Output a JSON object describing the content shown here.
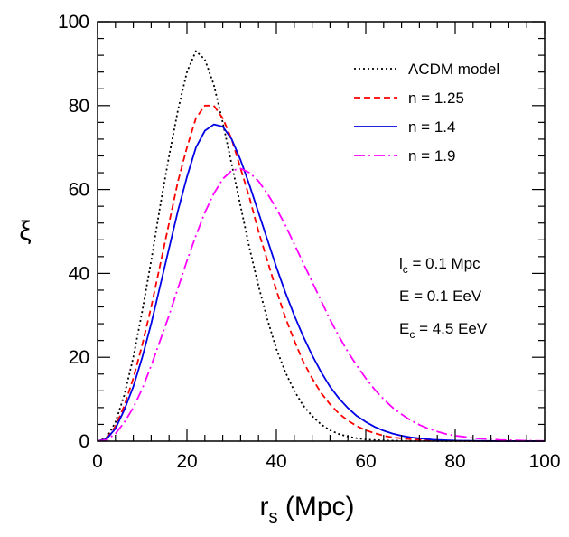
{
  "chart_data": {
    "type": "line",
    "xlabel": "r",
    "xlabel_sub": "s",
    "xlabel_unit": " (Mpc)",
    "ylabel": "ξ",
    "xlim": [
      0,
      100
    ],
    "ylim": [
      0,
      100
    ],
    "xticks": [
      0,
      20,
      40,
      60,
      80,
      100
    ],
    "yticks": [
      0,
      20,
      40,
      60,
      80,
      100
    ],
    "grid": false,
    "legend_position": "top-right",
    "series": [
      {
        "name": "ΛCDM model",
        "color": "#000000",
        "dash": "dotted",
        "x": [
          0,
          2,
          4,
          6,
          8,
          10,
          12,
          14,
          16,
          18,
          20,
          22,
          24,
          26,
          28,
          30,
          32,
          34,
          36,
          38,
          40,
          42,
          44,
          46,
          48,
          50,
          52,
          54,
          56,
          58,
          60,
          64,
          70,
          80,
          90,
          100
        ],
        "values": [
          0,
          0.8,
          4.5,
          11,
          20,
          31,
          43,
          56,
          68,
          79,
          88,
          93,
          91,
          85,
          76,
          66,
          56,
          46,
          37,
          29,
          22,
          16.5,
          12,
          8.5,
          6,
          4,
          2.6,
          1.7,
          1.1,
          0.7,
          0.4,
          0.15,
          0.04,
          0,
          0,
          0
        ]
      },
      {
        "name": "n = 1.25",
        "color": "#ff0000",
        "dash": "dashed",
        "x": [
          0,
          2,
          4,
          6,
          8,
          10,
          12,
          14,
          16,
          18,
          20,
          22,
          24,
          26,
          28,
          30,
          32,
          34,
          36,
          38,
          40,
          42,
          44,
          46,
          48,
          50,
          52,
          54,
          56,
          58,
          60,
          62,
          64,
          66,
          70,
          75,
          80,
          90,
          100
        ],
        "values": [
          0,
          0.6,
          3.5,
          8.5,
          15,
          23,
          32,
          42,
          52,
          62,
          70,
          77,
          80,
          80,
          77,
          72,
          65,
          58,
          50,
          43,
          36,
          29.5,
          24,
          19,
          15,
          11.5,
          8.8,
          6.6,
          4.9,
          3.6,
          2.6,
          1.9,
          1.3,
          0.9,
          0.45,
          0.15,
          0.05,
          0,
          0
        ]
      },
      {
        "name": "n = 1.4",
        "color": "#0000e6",
        "dash": "solid",
        "x": [
          0,
          2,
          4,
          6,
          8,
          10,
          12,
          14,
          16,
          18,
          20,
          22,
          24,
          26,
          28,
          30,
          32,
          34,
          36,
          38,
          40,
          42,
          44,
          46,
          48,
          50,
          52,
          54,
          56,
          58,
          60,
          62,
          64,
          66,
          68,
          70,
          75,
          80,
          90,
          100
        ],
        "values": [
          0,
          0.5,
          3,
          7.5,
          13,
          20,
          28,
          37,
          46,
          55,
          63,
          70,
          74,
          75.5,
          75,
          72,
          67,
          61,
          54.5,
          48,
          41.5,
          35.5,
          30,
          25,
          20.5,
          16.5,
          13,
          10.2,
          7.9,
          6,
          4.6,
          3.4,
          2.5,
          1.8,
          1.3,
          0.9,
          0.35,
          0.12,
          0.01,
          0
        ]
      },
      {
        "name": "n = 1.9",
        "color": "#ff00ff",
        "dash": "dashdot",
        "x": [
          0,
          2,
          4,
          6,
          8,
          10,
          12,
          14,
          16,
          18,
          20,
          22,
          24,
          26,
          28,
          30,
          32,
          34,
          36,
          38,
          40,
          42,
          44,
          46,
          48,
          50,
          52,
          54,
          56,
          58,
          60,
          62,
          64,
          66,
          68,
          70,
          72,
          74,
          76,
          78,
          80,
          85,
          90,
          95,
          100
        ],
        "values": [
          0,
          0.3,
          1.8,
          4.5,
          8,
          12.5,
          18,
          24,
          30,
          36.5,
          43,
          49,
          54.5,
          59,
          62.5,
          64.5,
          65,
          64,
          62,
          59,
          55.5,
          51.5,
          47,
          42.5,
          38,
          33.5,
          29,
          25,
          21.3,
          18,
          15,
          12.3,
          10,
          8,
          6.4,
          5,
          3.9,
          3,
          2.3,
          1.7,
          1.3,
          0.65,
          0.3,
          0.12,
          0.05
        ]
      }
    ]
  },
  "annotations": [
    {
      "main": "l",
      "sub": "c",
      "rest": " = 0.1 Mpc"
    },
    {
      "main": "E",
      "sub": "",
      "rest": " = 0.1 EeV"
    },
    {
      "main": "E",
      "sub": "c",
      "rest": " = 4.5 EeV"
    }
  ]
}
